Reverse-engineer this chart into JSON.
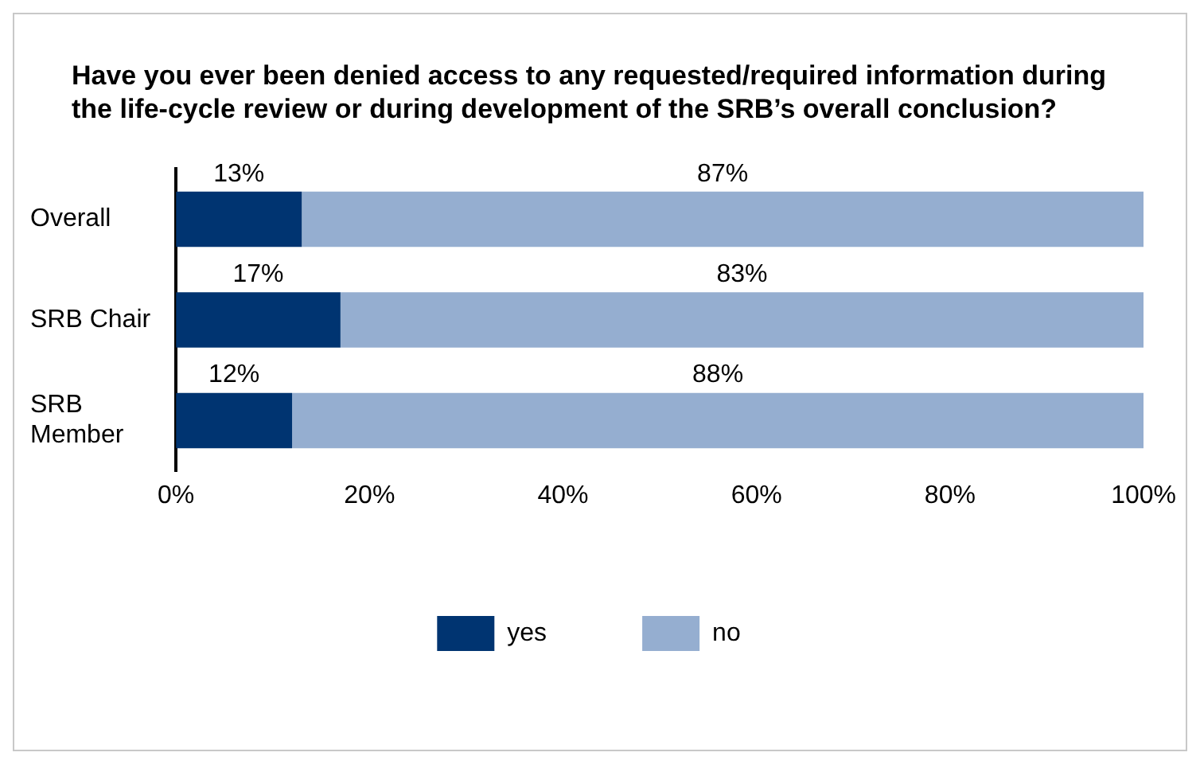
{
  "chart_data": {
    "type": "bar",
    "orientation": "horizontal",
    "stacked": true,
    "title": "Have you ever been denied access to any requested/required information during the life-cycle review or during development of the SRB’s overall conclusion?",
    "categories": [
      "Overall",
      "SRB Chair",
      "SRB Member"
    ],
    "series": [
      {
        "name": "yes",
        "color": "#003471",
        "values": [
          13,
          17,
          12
        ],
        "value_labels": [
          "13%",
          "17%",
          "12%"
        ]
      },
      {
        "name": "no",
        "color": "#95aed0",
        "values": [
          87,
          83,
          88
        ],
        "value_labels": [
          "87%",
          "83%",
          "88%"
        ]
      }
    ],
    "xlim": [
      0,
      100
    ],
    "xticks": [
      {
        "value": 0,
        "label": "0%"
      },
      {
        "value": 20,
        "label": "20%"
      },
      {
        "value": 40,
        "label": "40%"
      },
      {
        "value": 60,
        "label": "60%"
      },
      {
        "value": 80,
        "label": "80%"
      },
      {
        "value": 100,
        "label": "100%"
      }
    ],
    "grid": false,
    "legend": "bottom"
  }
}
